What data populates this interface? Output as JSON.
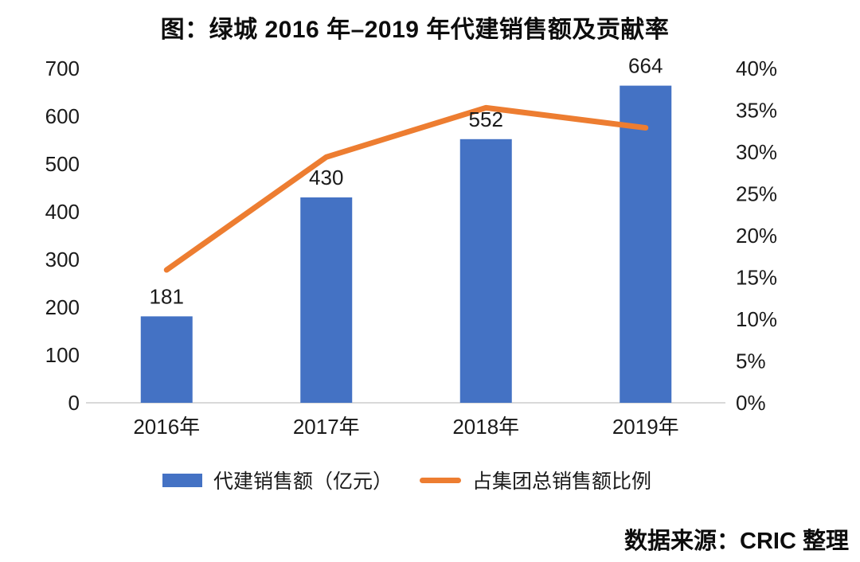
{
  "title": "图：绿城 2016 年–2019 年代建销售额及贡献率",
  "source": "数据来源：CRIC 整理",
  "colors": {
    "bar": "#4472C4",
    "line": "#ED7D31",
    "axis_line": "#D9D9D9",
    "text": "#1A1A1A",
    "background": "#FFFFFF"
  },
  "legend": [
    {
      "label": "代建销售额（亿元）",
      "marker": "bar-swatch",
      "color": "#4472C4"
    },
    {
      "label": "占集团总销售额比例",
      "marker": "line-swatch",
      "color": "#ED7D31"
    }
  ],
  "chart_data": {
    "type": "combo",
    "title": "图：绿城 2016 年–2019 年代建销售额及贡献率",
    "categories": [
      "2016年",
      "2017年",
      "2018年",
      "2019年"
    ],
    "series": [
      {
        "name": "代建销售额（亿元）",
        "type": "bar",
        "y_axis": "left",
        "color": "#4472C4",
        "values": [
          181,
          430,
          552,
          664
        ],
        "data_labels": [
          "181",
          "430",
          "552",
          "664"
        ]
      },
      {
        "name": "占集团总销售额比例",
        "type": "line",
        "y_axis": "right",
        "color": "#ED7D31",
        "values": [
          15.9,
          29.4,
          35.3,
          32.9
        ]
      }
    ],
    "left_axis": {
      "min": 0,
      "max": 700,
      "step": 100,
      "ticks": [
        "700",
        "600",
        "500",
        "400",
        "300",
        "200",
        "100",
        "0"
      ]
    },
    "right_axis": {
      "min": 0,
      "max": 40,
      "step": 5,
      "ticks": [
        "40%",
        "35%",
        "30%",
        "25%",
        "20%",
        "15%",
        "10%",
        "5%",
        "0%"
      ]
    },
    "grid": false,
    "legend_position": "bottom",
    "source_note": "数据来源：CRIC 整理"
  }
}
